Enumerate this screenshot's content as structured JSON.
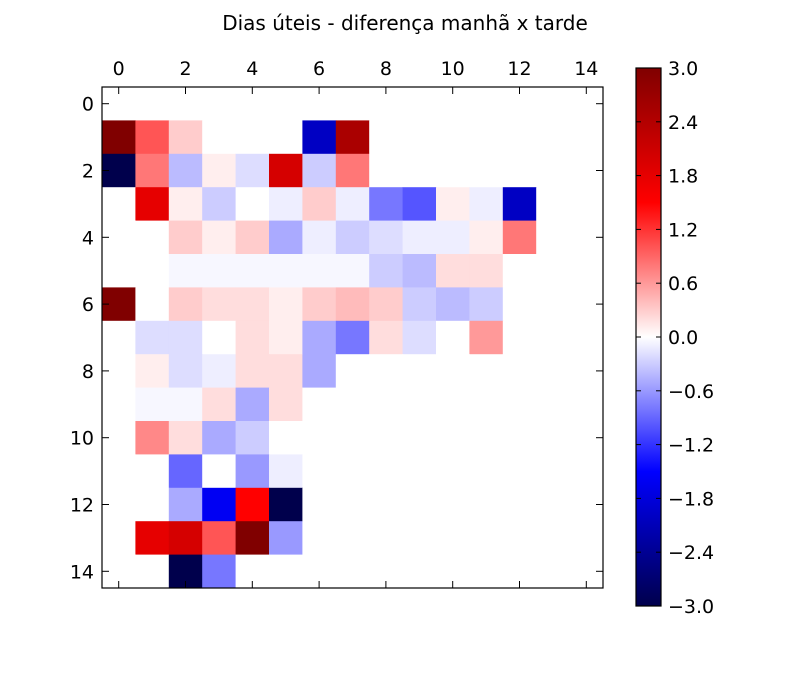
{
  "chart_data": {
    "type": "heatmap",
    "title": "Dias úteis - diferença manhã x tarde",
    "xlabel": "",
    "ylabel": "",
    "x_ticks": [
      "0",
      "2",
      "4",
      "6",
      "8",
      "10",
      "12",
      "14"
    ],
    "y_ticks": [
      "0",
      "2",
      "4",
      "6",
      "8",
      "10",
      "12",
      "14"
    ],
    "x_tick_position": "top",
    "xlim": [
      -0.5,
      14.5
    ],
    "ylim": [
      -0.5,
      14.5
    ],
    "colormap": "seismic",
    "colorbar_range": [
      -3.0,
      3.0
    ],
    "colorbar_ticks": [
      "3.0",
      "2.4",
      "1.8",
      "1.2",
      "0.6",
      "0.0",
      "−0.6",
      "−1.2",
      "−1.8",
      "−2.4",
      "−3.0"
    ],
    "colorbar_position": "right",
    "grid": false,
    "values": [
      [
        0,
        0,
        0,
        0,
        0,
        0,
        0,
        0,
        0,
        0,
        0,
        0,
        0,
        0,
        0
      ],
      [
        3.0,
        1.0,
        0.3,
        0,
        0,
        0,
        -2.0,
        2.5,
        0,
        0,
        0,
        0,
        0,
        0,
        0
      ],
      [
        -3.0,
        0.8,
        -0.4,
        0.1,
        -0.2,
        2.0,
        -0.3,
        0.8,
        0,
        0,
        0,
        0,
        0,
        0,
        0
      ],
      [
        0,
        1.8,
        0.1,
        -0.3,
        0,
        -0.1,
        0.3,
        -0.1,
        -0.8,
        -1.0,
        0.1,
        -0.1,
        -2.0,
        0,
        0
      ],
      [
        0,
        0,
        0.3,
        0.1,
        0.3,
        -0.5,
        -0.1,
        -0.3,
        -0.2,
        -0.1,
        -0.1,
        0.1,
        0.8,
        0,
        0
      ],
      [
        0,
        0,
        -0.05,
        -0.05,
        -0.05,
        -0.05,
        -0.05,
        -0.05,
        -0.3,
        -0.4,
        0.2,
        0.2,
        0,
        0,
        0
      ],
      [
        3.0,
        0,
        0.3,
        0.2,
        0.2,
        0.1,
        0.3,
        0.4,
        0.3,
        -0.3,
        -0.4,
        -0.3,
        0,
        0,
        0
      ],
      [
        0,
        -0.2,
        -0.2,
        0,
        0.2,
        0.1,
        -0.5,
        -0.8,
        0.2,
        -0.2,
        0,
        0.6,
        0,
        0,
        0
      ],
      [
        0,
        0.1,
        -0.2,
        -0.1,
        0.2,
        0.2,
        -0.5,
        0,
        0,
        0,
        0,
        0,
        0,
        0,
        0
      ],
      [
        0,
        -0.05,
        -0.05,
        0.2,
        -0.5,
        0.2,
        0,
        0,
        0,
        0,
        0,
        0,
        0,
        0,
        0
      ],
      [
        0,
        0.7,
        0.2,
        -0.5,
        -0.3,
        0,
        0,
        0,
        0,
        0,
        0,
        0,
        0,
        0,
        0
      ],
      [
        0,
        0,
        -0.9,
        0,
        -0.6,
        -0.1,
        0,
        0,
        0,
        0,
        0,
        0,
        0,
        0,
        0
      ],
      [
        0,
        0,
        -0.5,
        -1.6,
        1.5,
        -3.0,
        0,
        0,
        0,
        0,
        0,
        0,
        0,
        0,
        0
      ],
      [
        0,
        1.8,
        2.0,
        1.0,
        3.0,
        -0.6,
        0,
        0,
        0,
        0,
        0,
        0,
        0,
        0,
        0
      ],
      [
        0,
        0,
        -3.0,
        -0.8,
        0,
        0,
        0,
        0,
        0,
        0,
        0,
        0,
        0,
        0,
        0
      ]
    ]
  }
}
